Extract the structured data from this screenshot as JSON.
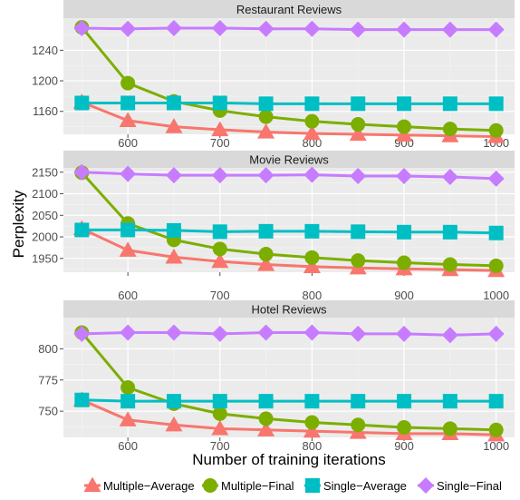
{
  "chart_data": {
    "type": "line",
    "xlabel": "Number of training iterations",
    "ylabel": "Perplexity",
    "x": [
      550,
      600,
      650,
      700,
      750,
      800,
      850,
      900,
      950,
      1000
    ],
    "xlim": [
      530,
      1020
    ],
    "xticks": [
      600,
      700,
      800,
      900,
      1000
    ],
    "legend_position": "bottom",
    "series_names": [
      "Multiple−Average",
      "Multiple−Final",
      "Single−Average",
      "Single−Final"
    ],
    "colors": {
      "Multiple−Average": "#F8766D",
      "Multiple−Final": "#7CAE00",
      "Single−Average": "#00BFC4",
      "Single−Final": "#C77CFF"
    },
    "markers": {
      "Multiple−Average": "triangle",
      "Multiple−Final": "circle",
      "Single−Average": "square",
      "Single−Final": "diamond"
    },
    "panels": [
      {
        "title": "Restaurant Reviews",
        "ylim": [
          1130,
          1282
        ],
        "yticks": [
          1160,
          1200,
          1240
        ],
        "series": [
          {
            "name": "Multiple−Average",
            "values": [
              1172,
              1148,
              1140,
              1136,
              1133,
              1131,
              1130,
              1129,
              1128,
              1127
            ]
          },
          {
            "name": "Multiple−Final",
            "values": [
              1270,
              1197,
              1173,
              1161,
              1153,
              1147,
              1143,
              1140,
              1137,
              1135
            ]
          },
          {
            "name": "Single−Average",
            "values": [
              1171,
              1171,
              1171,
              1171,
              1170,
              1170,
              1170,
              1170,
              1170,
              1170
            ]
          },
          {
            "name": "Single−Final",
            "values": [
              1269,
              1268,
              1269,
              1269,
              1268,
              1268,
              1267,
              1267,
              1267,
              1267
            ]
          }
        ]
      },
      {
        "title": "Movie Reviews",
        "ylim": [
          1918,
          2160
        ],
        "yticks": [
          1950,
          2000,
          2050,
          2100,
          2150
        ],
        "series": [
          {
            "name": "Multiple−Average",
            "values": [
              2019,
              1969,
              1953,
              1943,
              1936,
              1931,
              1928,
              1926,
              1924,
              1922
            ]
          },
          {
            "name": "Multiple−Final",
            "values": [
              2149,
              2031,
              1993,
              1972,
              1960,
              1952,
              1945,
              1940,
              1936,
              1933
            ]
          },
          {
            "name": "Single−Average",
            "values": [
              2016,
              2016,
              2015,
              2012,
              2013,
              2013,
              2012,
              2011,
              2011,
              2009
            ]
          },
          {
            "name": "Single−Final",
            "values": [
              2150,
              2146,
              2143,
              2143,
              2143,
              2144,
              2141,
              2141,
              2139,
              2135
            ]
          }
        ]
      },
      {
        "title": "Hotel Reviews",
        "ylim": [
          729,
          825
        ],
        "yticks": [
          750,
          775,
          800
        ],
        "series": [
          {
            "name": "Multiple−Average",
            "values": [
              759,
              743,
              739,
              736,
              735,
              734,
              733,
              732,
              732,
              731
            ]
          },
          {
            "name": "Multiple−Final",
            "values": [
              813,
              769,
              756,
              748,
              744,
              741,
              739,
              737,
              736,
              735
            ]
          },
          {
            "name": "Single−Average",
            "values": [
              759,
              758,
              758,
              758,
              758,
              758,
              758,
              758,
              758,
              758
            ]
          },
          {
            "name": "Single−Final",
            "values": [
              812,
              813,
              813,
              812,
              813,
              813,
              812,
              812,
              811,
              812
            ]
          }
        ]
      }
    ]
  }
}
